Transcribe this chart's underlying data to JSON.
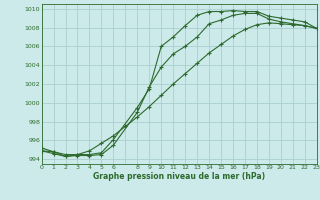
{
  "title": "Graphe pression niveau de la mer (hPa)",
  "bg_color": "#cceaea",
  "grid_color": "#aacece",
  "line_color": "#2d6a2d",
  "xlim": [
    0,
    23
  ],
  "ylim": [
    993.5,
    1010.5
  ],
  "y_ticks": [
    994,
    996,
    998,
    1000,
    1002,
    1004,
    1006,
    1008,
    1010
  ],
  "line1_x": [
    0,
    1,
    2,
    3,
    4,
    5,
    6,
    8,
    9,
    10,
    11,
    12,
    13,
    14,
    15,
    16,
    17,
    18,
    19,
    20,
    21,
    22,
    23
  ],
  "line1_y": [
    995.2,
    994.8,
    994.3,
    994.5,
    994.5,
    994.7,
    996.1,
    999.5,
    1001.5,
    1006.0,
    1007.0,
    1008.2,
    1009.3,
    1009.7,
    1009.7,
    1009.8,
    1009.7,
    1009.7,
    1009.2,
    1009.0,
    1008.8,
    1008.6,
    1007.9
  ],
  "line2_x": [
    0,
    1,
    2,
    3,
    4,
    5,
    6,
    8,
    9,
    10,
    11,
    12,
    13,
    14,
    15,
    16,
    17,
    18,
    19,
    20,
    21,
    22,
    23
  ],
  "line2_y": [
    994.9,
    994.6,
    994.3,
    994.4,
    994.4,
    994.5,
    995.5,
    999.0,
    1001.7,
    1003.8,
    1005.2,
    1006.0,
    1007.0,
    1008.4,
    1008.8,
    1009.3,
    1009.5,
    1009.5,
    1008.9,
    1008.6,
    1008.4,
    1008.2,
    1007.9
  ],
  "line3_x": [
    0,
    1,
    2,
    3,
    4,
    5,
    6,
    7,
    8,
    9,
    10,
    11,
    12,
    13,
    14,
    15,
    16,
    17,
    18,
    19,
    20,
    21,
    22,
    23
  ],
  "line3_y": [
    994.9,
    994.8,
    994.5,
    994.5,
    994.9,
    995.7,
    996.5,
    997.5,
    998.5,
    999.6,
    1000.8,
    1002.0,
    1003.1,
    1004.2,
    1005.3,
    1006.2,
    1007.1,
    1007.8,
    1008.3,
    1008.5,
    1008.4,
    1008.3,
    1008.2,
    1007.9
  ]
}
